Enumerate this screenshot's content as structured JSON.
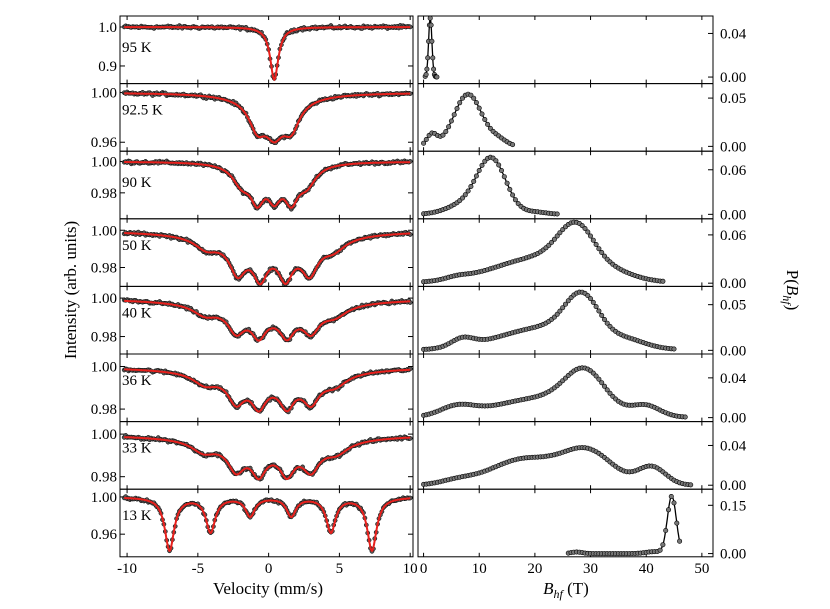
{
  "figure": {
    "ylabel_left": "Intensity (arb. units)",
    "ylabel_right": "P(B_hf)",
    "xlabel_left": "Velocity (mm/s)",
    "xlabel_right_symbol": "B",
    "xlabel_right_subscript": "hf",
    "xlabel_right_unit": " (T)"
  },
  "chart_data": [
    {
      "type": "line",
      "panel": "left",
      "title": "",
      "xlabel": "Velocity (mm/s)",
      "ylabel": "Intensity (arb. units)",
      "xlim": [
        -10.5,
        10.2
      ],
      "xticks": [
        -10,
        -5,
        0,
        5,
        10
      ],
      "xtick_labels": [
        "-10",
        "-5",
        "0",
        "5",
        "10"
      ],
      "marker_color": "#555555",
      "fit_color": "#e8201c",
      "rows": [
        {
          "temperature": "95 K",
          "ylim": [
            0.865,
            1.018
          ],
          "yticks": [
            0.9,
            1.0
          ],
          "ytick_labels": [
            "0.9",
            "1.0"
          ],
          "lines": [
            {
              "pos": 0.4,
              "depth": 0.135,
              "width": 0.35
            }
          ]
        },
        {
          "temperature": "92.5 K",
          "ylim": [
            0.956,
            1.004
          ],
          "yticks": [
            0.96,
            1.0
          ],
          "ytick_labels": [
            "0.96",
            "1.00"
          ],
          "lines": [
            {
              "pos": -0.8,
              "depth": 0.02,
              "width": 0.7
            },
            {
              "pos": 0.4,
              "depth": 0.018,
              "width": 0.7
            },
            {
              "pos": 1.6,
              "depth": 0.02,
              "width": 0.7
            },
            {
              "pos": 0.4,
              "depth": 0.012,
              "width": 2.0
            }
          ]
        },
        {
          "temperature": "90 K",
          "ylim": [
            0.966,
            1.004
          ],
          "yticks": [
            0.98,
            1.0
          ],
          "ytick_labels": [
            "0.98",
            "1.00"
          ],
          "lines": [
            {
              "pos": -1.9,
              "depth": 0.012,
              "width": 0.8
            },
            {
              "pos": -0.8,
              "depth": 0.02,
              "width": 0.6
            },
            {
              "pos": 0.4,
              "depth": 0.018,
              "width": 0.6
            },
            {
              "pos": 1.6,
              "depth": 0.02,
              "width": 0.6
            },
            {
              "pos": 2.7,
              "depth": 0.012,
              "width": 0.8
            }
          ]
        },
        {
          "temperature": "50 K",
          "ylim": [
            0.972,
            1.004
          ],
          "yticks": [
            0.98,
            1.0
          ],
          "ytick_labels": [
            "0.98",
            "1.00"
          ],
          "lines": [
            {
              "pos": -4.4,
              "depth": 0.006,
              "width": 1.0
            },
            {
              "pos": -2.2,
              "depth": 0.016,
              "width": 0.7
            },
            {
              "pos": -0.6,
              "depth": 0.016,
              "width": 0.6
            },
            {
              "pos": 1.2,
              "depth": 0.016,
              "width": 0.6
            },
            {
              "pos": 2.9,
              "depth": 0.016,
              "width": 0.7
            },
            {
              "pos": 4.6,
              "depth": 0.006,
              "width": 1.0
            },
            {
              "pos": 0.3,
              "depth": 0.008,
              "width": 4.0
            }
          ]
        },
        {
          "temperature": "40 K",
          "ylim": [
            0.973,
            1.004
          ],
          "yticks": [
            0.98,
            1.0
          ],
          "ytick_labels": [
            "0.98",
            "1.00"
          ],
          "lines": [
            {
              "pos": -4.5,
              "depth": 0.005,
              "width": 1.0
            },
            {
              "pos": -2.3,
              "depth": 0.011,
              "width": 0.7
            },
            {
              "pos": -0.7,
              "depth": 0.011,
              "width": 0.6
            },
            {
              "pos": 1.3,
              "depth": 0.011,
              "width": 0.6
            },
            {
              "pos": 3.0,
              "depth": 0.011,
              "width": 0.7
            },
            {
              "pos": 4.7,
              "depth": 0.005,
              "width": 1.0
            },
            {
              "pos": 0.3,
              "depth": 0.008,
              "width": 4.2
            }
          ]
        },
        {
          "temperature": "36 K",
          "ylim": [
            0.976,
            1.004
          ],
          "yticks": [
            0.98,
            1.0
          ],
          "ytick_labels": [
            "0.98",
            "1.00"
          ],
          "lines": [
            {
              "pos": -4.5,
              "depth": 0.005,
              "width": 1.0
            },
            {
              "pos": -2.3,
              "depth": 0.011,
              "width": 0.7
            },
            {
              "pos": -0.7,
              "depth": 0.011,
              "width": 0.6
            },
            {
              "pos": 1.3,
              "depth": 0.011,
              "width": 0.6
            },
            {
              "pos": 3.0,
              "depth": 0.011,
              "width": 0.7
            },
            {
              "pos": 4.7,
              "depth": 0.005,
              "width": 1.0
            },
            {
              "pos": 0.3,
              "depth": 0.007,
              "width": 4.2
            }
          ]
        },
        {
          "temperature": "33 K",
          "ylim": [
            0.976,
            1.004
          ],
          "yticks": [
            0.98,
            1.0
          ],
          "ytick_labels": [
            "0.98",
            "1.00"
          ],
          "lines": [
            {
              "pos": -4.6,
              "depth": 0.005,
              "width": 1.0
            },
            {
              "pos": -2.3,
              "depth": 0.011,
              "width": 0.7
            },
            {
              "pos": -0.7,
              "depth": 0.011,
              "width": 0.6
            },
            {
              "pos": 1.3,
              "depth": 0.011,
              "width": 0.6
            },
            {
              "pos": 3.0,
              "depth": 0.011,
              "width": 0.7
            },
            {
              "pos": 4.8,
              "depth": 0.005,
              "width": 1.0
            },
            {
              "pos": 0.3,
              "depth": 0.007,
              "width": 4.4
            }
          ]
        },
        {
          "temperature": "13 K",
          "ylim": [
            0.94,
            1.004
          ],
          "yticks": [
            0.96,
            1.0
          ],
          "ytick_labels": [
            "0.96",
            "1.00"
          ],
          "lines": [
            {
              "pos": -7.0,
              "depth": 0.057,
              "width": 0.4
            },
            {
              "pos": -4.1,
              "depth": 0.037,
              "width": 0.4
            },
            {
              "pos": -1.3,
              "depth": 0.02,
              "width": 0.4
            },
            {
              "pos": 1.6,
              "depth": 0.02,
              "width": 0.4
            },
            {
              "pos": 4.4,
              "depth": 0.037,
              "width": 0.4
            },
            {
              "pos": 7.3,
              "depth": 0.057,
              "width": 0.4
            }
          ]
        }
      ]
    },
    {
      "type": "line",
      "panel": "right",
      "title": "",
      "xlabel": "B_hf (T)",
      "ylabel": "P(B_hf)",
      "xlim": [
        -1,
        52
      ],
      "xticks": [
        0,
        10,
        20,
        30,
        40,
        50
      ],
      "xtick_labels": [
        "0",
        "10",
        "20",
        "30",
        "40",
        "50"
      ],
      "rows": [
        {
          "temperature": "95 K",
          "ylim": [
            -0.006,
            0.056
          ],
          "yticks": [
            0.0,
            0.04
          ],
          "ytick_labels": [
            "0.00",
            "0.04"
          ],
          "range": [
            0.3,
            2.5
          ],
          "components": [
            {
              "center": 1.2,
              "sigma": 0.3,
              "amp": 0.054
            }
          ]
        },
        {
          "temperature": "92.5 K",
          "ylim": [
            -0.005,
            0.065
          ],
          "yticks": [
            0.0,
            0.05
          ],
          "ytick_labels": [
            "0.00",
            "0.05"
          ],
          "range": [
            0,
            16
          ],
          "components": [
            {
              "center": 1.5,
              "sigma": 0.9,
              "amp": 0.012
            },
            {
              "center": 8.0,
              "sigma": 2.5,
              "amp": 0.054
            },
            {
              "center": 13.5,
              "sigma": 1.5,
              "amp": 0.006
            }
          ]
        },
        {
          "temperature": "90 K",
          "ylim": [
            -0.006,
            0.085
          ],
          "yticks": [
            0.0,
            0.06
          ],
          "ytick_labels": [
            "0.00",
            "0.06"
          ],
          "range": [
            0,
            24
          ],
          "components": [
            {
              "center": 12.2,
              "sigma": 2.6,
              "amp": 0.074
            },
            {
              "center": 7.0,
              "sigma": 3.0,
              "amp": 0.012
            },
            {
              "center": 20.0,
              "sigma": 2.0,
              "amp": 0.003
            }
          ]
        },
        {
          "temperature": "50 K",
          "ylim": [
            -0.004,
            0.08
          ],
          "yticks": [
            0.0,
            0.06
          ],
          "ytick_labels": [
            "0.00",
            "0.06"
          ],
          "range": [
            0,
            43
          ],
          "components": [
            {
              "center": 27.5,
              "sigma": 3.2,
              "amp": 0.048
            },
            {
              "center": 22.0,
              "sigma": 9.0,
              "amp": 0.033
            },
            {
              "center": 6.0,
              "sigma": 2.0,
              "amp": 0.003
            },
            {
              "center": 35.0,
              "sigma": 3.0,
              "amp": 0.004
            }
          ]
        },
        {
          "temperature": "40 K",
          "ylim": [
            -0.004,
            0.07
          ],
          "yticks": [
            0.0,
            0.05
          ],
          "ytick_labels": [
            "0.00",
            "0.05"
          ],
          "range": [
            0,
            45
          ],
          "components": [
            {
              "center": 28.5,
              "sigma": 3.0,
              "amp": 0.042
            },
            {
              "center": 23.0,
              "sigma": 9.0,
              "amp": 0.026
            },
            {
              "center": 7.0,
              "sigma": 2.0,
              "amp": 0.009
            },
            {
              "center": 37.0,
              "sigma": 3.0,
              "amp": 0.005
            }
          ]
        },
        {
          "temperature": "36 K",
          "ylim": [
            -0.004,
            0.064
          ],
          "yticks": [
            0.0,
            0.04
          ],
          "ytick_labels": [
            "0.00",
            "0.04"
          ],
          "range": [
            0,
            47
          ],
          "components": [
            {
              "center": 29.0,
              "sigma": 3.5,
              "amp": 0.035
            },
            {
              "center": 22.0,
              "sigma": 9.0,
              "amp": 0.02
            },
            {
              "center": 6.0,
              "sigma": 3.0,
              "amp": 0.009
            },
            {
              "center": 40.0,
              "sigma": 2.5,
              "amp": 0.01
            }
          ]
        },
        {
          "temperature": "33 K",
          "ylim": [
            -0.004,
            0.064
          ],
          "yticks": [
            0.0,
            0.04
          ],
          "ytick_labels": [
            "0.00",
            "0.04"
          ],
          "range": [
            0,
            48
          ],
          "components": [
            {
              "center": 29.5,
              "sigma": 4.5,
              "amp": 0.033
            },
            {
              "center": 18.0,
              "sigma": 6.0,
              "amp": 0.026
            },
            {
              "center": 41.0,
              "sigma": 2.5,
              "amp": 0.018
            },
            {
              "center": 6.0,
              "sigma": 3.0,
              "amp": 0.004
            }
          ]
        },
        {
          "temperature": "13 K",
          "ylim": [
            -0.01,
            0.2
          ],
          "yticks": [
            0.0,
            0.15
          ],
          "ytick_labels": [
            "0.00",
            "0.15"
          ],
          "range": [
            26,
            46
          ],
          "components": [
            {
              "center": 44.6,
              "sigma": 0.8,
              "amp": 0.178
            },
            {
              "center": 41.5,
              "sigma": 1.5,
              "amp": 0.006
            },
            {
              "center": 27.5,
              "sigma": 1.0,
              "amp": 0.005
            }
          ]
        }
      ]
    }
  ]
}
